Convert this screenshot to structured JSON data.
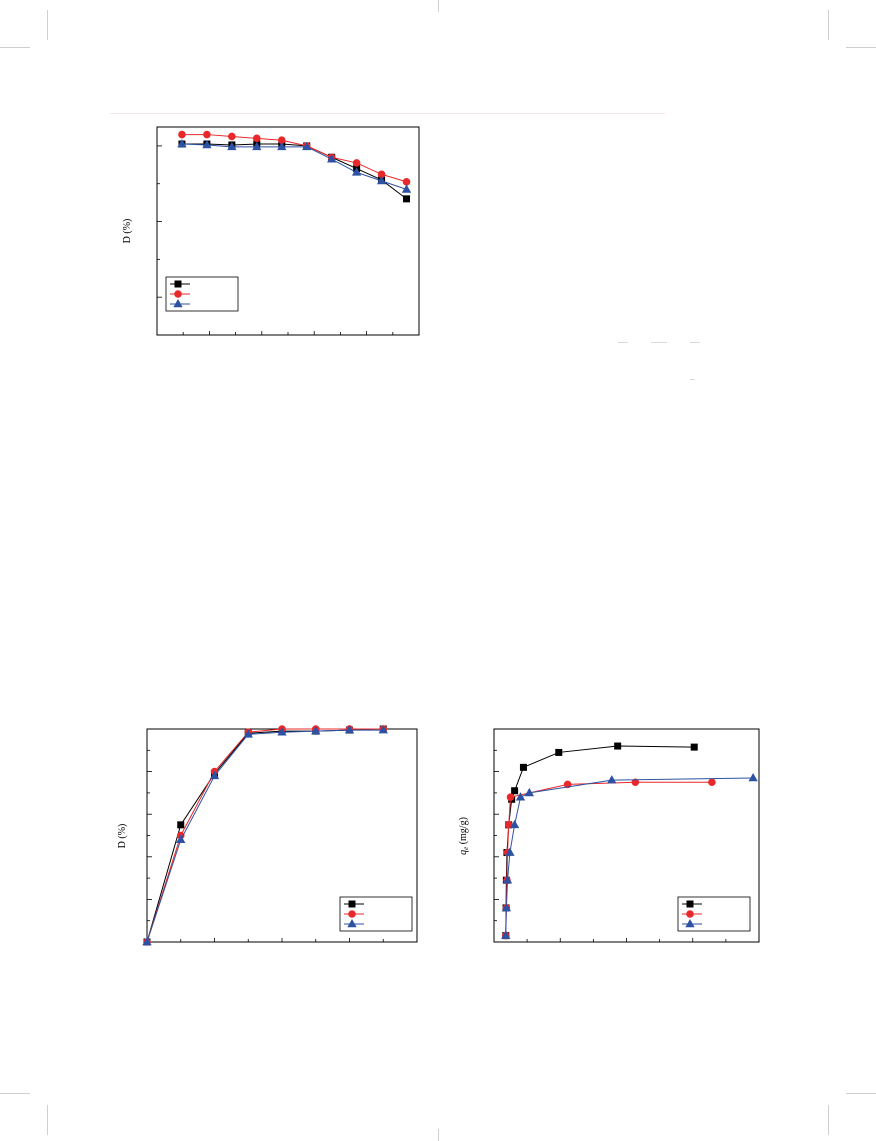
{
  "page": {},
  "chart_data": [
    {
      "type": "line",
      "title": "",
      "xlabel": "",
      "ylabel": "D (%)",
      "legend_position": "bottom-left",
      "x": [
        1,
        2,
        3,
        4,
        5,
        6,
        7,
        8,
        9,
        10
      ],
      "xlim": [
        0,
        10.5
      ],
      "ylim": [
        0,
        110
      ],
      "series": [
        {
          "marker": "square",
          "color": "#000000",
          "values": [
            101,
            101,
            100.5,
            101,
            101,
            100,
            94,
            88,
            82,
            72
          ]
        },
        {
          "marker": "circle",
          "color": "#e8282b",
          "values": [
            106,
            106,
            105,
            104,
            103,
            100,
            94,
            91,
            85,
            81
          ]
        },
        {
          "marker": "triangle",
          "color": "#2e52a3",
          "values": [
            101,
            100.5,
            99.5,
            99.5,
            99.5,
            99.5,
            93,
            86,
            81.5,
            77
          ]
        }
      ]
    },
    {
      "type": "line",
      "title": "",
      "xlabel": "",
      "ylabel": "D (%)",
      "legend_position": "bottom-right",
      "x": [
        0,
        1,
        2,
        3,
        4,
        5,
        6,
        7
      ],
      "xlim": [
        0,
        8
      ],
      "ylim": [
        0,
        100
      ],
      "series": [
        {
          "marker": "square",
          "color": "#000000",
          "values": [
            0,
            55,
            79,
            98,
            99,
            99,
            99.5,
            100
          ]
        },
        {
          "marker": "circle",
          "color": "#e8282b",
          "values": [
            0,
            50,
            80,
            98.5,
            100,
            100,
            100,
            100
          ]
        },
        {
          "marker": "triangle",
          "color": "#2e52a3",
          "values": [
            0,
            48,
            78,
            97.5,
            98.5,
            99,
            99.5,
            99.5
          ]
        }
      ]
    },
    {
      "type": "line",
      "title": "",
      "xlabel": "",
      "ylabel": "qe (mg/g)",
      "legend_position": "bottom-right",
      "xlim": [
        -20,
        430
      ],
      "ylim": [
        0,
        100
      ],
      "series": [
        {
          "marker": "square",
          "color": "#000000",
          "x": [
            0,
            0.5,
            1,
            2,
            5,
            10,
            15,
            30,
            90,
            190,
            320
          ],
          "y": [
            3,
            16,
            29,
            42,
            55,
            67,
            71,
            82,
            89,
            92,
            91.5
          ]
        },
        {
          "marker": "circle",
          "color": "#e8282b",
          "x": [
            0,
            1,
            2,
            3,
            5,
            8,
            105,
            220,
            350
          ],
          "y": [
            3,
            16,
            29,
            42,
            55,
            68,
            74,
            75,
            75
          ]
        },
        {
          "marker": "triangle",
          "color": "#2e52a3",
          "x": [
            0,
            1,
            3,
            7,
            15,
            25,
            40,
            180,
            420
          ],
          "y": [
            3,
            16,
            29,
            42,
            55,
            68,
            70,
            76,
            77
          ]
        }
      ]
    }
  ]
}
